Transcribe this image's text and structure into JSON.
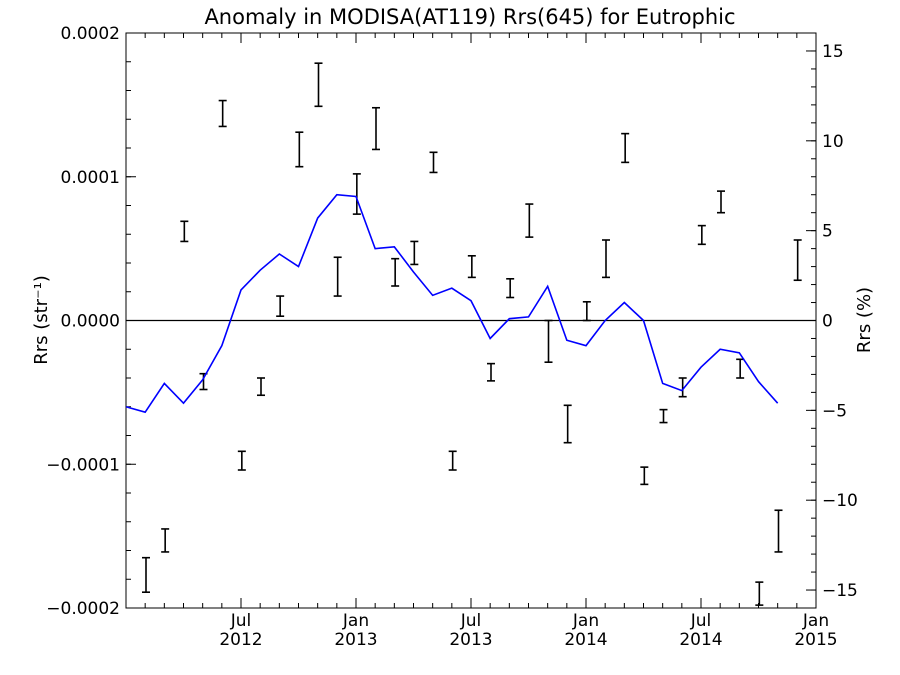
{
  "chart_data": {
    "type": "line",
    "title": "Anomaly in MODISA(AT119) Rrs(645) for Eutrophic",
    "ylabel_left": "Rrs (str⁻¹)",
    "ylabel_right": "Rrs (%)",
    "x_unit": "month",
    "x_start": "2012-01",
    "xlim": [
      "2012-01",
      "2015-01"
    ],
    "ylim_left": [
      -0.0002,
      0.0002
    ],
    "ylim_right": [
      -16,
      16
    ],
    "x_ticks": [
      {
        "month": "2012-07",
        "line1": "Jul",
        "line2": "2012"
      },
      {
        "month": "2013-01",
        "line1": "Jan",
        "line2": "2013"
      },
      {
        "month": "2013-07",
        "line1": "Jul",
        "line2": "2013"
      },
      {
        "month": "2014-01",
        "line1": "Jan",
        "line2": "2014"
      },
      {
        "month": "2014-07",
        "line1": "Jul",
        "line2": "2014"
      },
      {
        "month": "2015-01",
        "line1": "Jan",
        "line2": "2015"
      }
    ],
    "y_ticks_left": [
      {
        "value": 0.0002,
        "label": "0.0002"
      },
      {
        "value": 0.0001,
        "label": "0.0001"
      },
      {
        "value": 0.0,
        "label": "0.0000"
      },
      {
        "value": -0.0001,
        "label": "−0.0001"
      },
      {
        "value": -0.0002,
        "label": "−0.0002"
      }
    ],
    "y_ticks_right": [
      {
        "value": 15,
        "label": "15"
      },
      {
        "value": 10,
        "label": "10"
      },
      {
        "value": 5,
        "label": "5"
      },
      {
        "value": 0,
        "label": "0"
      },
      {
        "value": -5,
        "label": "−5"
      },
      {
        "value": -10,
        "label": "−10"
      },
      {
        "value": -15,
        "label": "−15"
      }
    ],
    "zero_line": true,
    "grid": false,
    "series": [
      {
        "axis": "left",
        "style": "errorbar",
        "color": "#000000",
        "points": [
          {
            "x": "2012-01",
            "low": -0.000189,
            "high": -0.000165
          },
          {
            "x": "2012-02",
            "low": -0.000161,
            "high": -0.000145
          },
          {
            "x": "2012-03",
            "low": 5.5e-05,
            "high": 6.9e-05
          },
          {
            "x": "2012-04",
            "low": -4.8e-05,
            "high": -3.7e-05
          },
          {
            "x": "2012-05",
            "low": 0.000135,
            "high": 0.000153
          },
          {
            "x": "2012-06",
            "low": -0.000104,
            "high": -9.1e-05
          },
          {
            "x": "2012-07",
            "low": -5.2e-05,
            "high": -4e-05
          },
          {
            "x": "2012-08",
            "low": 3e-06,
            "high": 1.7e-05
          },
          {
            "x": "2012-09",
            "low": 0.000107,
            "high": 0.000131
          },
          {
            "x": "2012-10",
            "low": 0.000149,
            "high": 0.000179
          },
          {
            "x": "2012-11",
            "low": 1.7e-05,
            "high": 4.4e-05
          },
          {
            "x": "2012-12",
            "low": 7.4e-05,
            "high": 0.000102
          },
          {
            "x": "2013-01",
            "low": 0.000119,
            "high": 0.000148
          },
          {
            "x": "2013-02",
            "low": 2.4e-05,
            "high": 4.3e-05
          },
          {
            "x": "2013-03",
            "low": 3.9e-05,
            "high": 5.5e-05
          },
          {
            "x": "2013-04",
            "low": 0.000103,
            "high": 0.000117
          },
          {
            "x": "2013-05",
            "low": -0.000104,
            "high": -9.1e-05
          },
          {
            "x": "2013-06",
            "low": 3e-05,
            "high": 4.5e-05
          },
          {
            "x": "2013-07",
            "low": -4.2e-05,
            "high": -3e-05
          },
          {
            "x": "2013-08",
            "low": 1.6e-05,
            "high": 2.9e-05
          },
          {
            "x": "2013-09",
            "low": 5.8e-05,
            "high": 8.1e-05
          },
          {
            "x": "2013-10",
            "low": -2.9e-05,
            "high": 0.0
          },
          {
            "x": "2013-11",
            "low": -8.5e-05,
            "high": -5.9e-05
          },
          {
            "x": "2013-12",
            "low": 0.0,
            "high": 1.3e-05
          },
          {
            "x": "2014-01",
            "low": 3e-05,
            "high": 5.6e-05
          },
          {
            "x": "2014-02",
            "low": 0.00011,
            "high": 0.00013
          },
          {
            "x": "2014-03",
            "low": -0.000114,
            "high": -0.000102
          },
          {
            "x": "2014-04",
            "low": -7.1e-05,
            "high": -6.2e-05
          },
          {
            "x": "2014-05",
            "low": -5.3e-05,
            "high": -4e-05
          },
          {
            "x": "2014-06",
            "low": 5.3e-05,
            "high": 6.6e-05
          },
          {
            "x": "2014-07",
            "low": 7.5e-05,
            "high": 9e-05
          },
          {
            "x": "2014-08",
            "low": -4e-05,
            "high": -2.7e-05
          },
          {
            "x": "2014-09",
            "low": -0.000198,
            "high": -0.000182
          },
          {
            "x": "2014-10",
            "low": -0.000161,
            "high": -0.000132
          },
          {
            "x": "2014-11",
            "low": 2.8e-05,
            "high": 5.6e-05
          }
        ]
      },
      {
        "axis": "right",
        "style": "line",
        "color": "#0000ff",
        "points": [
          {
            "x": "2012-01",
            "y": -4.8
          },
          {
            "x": "2012-02",
            "y": -5.1
          },
          {
            "x": "2012-03",
            "y": -3.5
          },
          {
            "x": "2012-04",
            "y": -4.6
          },
          {
            "x": "2012-05",
            "y": -3.3
          },
          {
            "x": "2012-06",
            "y": -1.4
          },
          {
            "x": "2012-07",
            "y": 1.7
          },
          {
            "x": "2012-08",
            "y": 2.8
          },
          {
            "x": "2012-09",
            "y": 3.7
          },
          {
            "x": "2012-10",
            "y": 3.0
          },
          {
            "x": "2012-11",
            "y": 5.7
          },
          {
            "x": "2012-12",
            "y": 7.0
          },
          {
            "x": "2013-01",
            "y": 6.9
          },
          {
            "x": "2013-02",
            "y": 4.0
          },
          {
            "x": "2013-03",
            "y": 4.1
          },
          {
            "x": "2013-04",
            "y": 2.7
          },
          {
            "x": "2013-05",
            "y": 1.4
          },
          {
            "x": "2013-06",
            "y": 1.8
          },
          {
            "x": "2013-07",
            "y": 1.1
          },
          {
            "x": "2013-08",
            "y": -1.0
          },
          {
            "x": "2013-09",
            "y": 0.1
          },
          {
            "x": "2013-10",
            "y": 0.2
          },
          {
            "x": "2013-11",
            "y": 1.9
          },
          {
            "x": "2013-12",
            "y": -1.1
          },
          {
            "x": "2014-01",
            "y": -1.4
          },
          {
            "x": "2014-02",
            "y": 0.0
          },
          {
            "x": "2014-03",
            "y": 1.0
          },
          {
            "x": "2014-04",
            "y": 0.0
          },
          {
            "x": "2014-05",
            "y": -3.5
          },
          {
            "x": "2014-06",
            "y": -3.9
          },
          {
            "x": "2014-07",
            "y": -2.6
          },
          {
            "x": "2014-08",
            "y": -1.6
          },
          {
            "x": "2014-09",
            "y": -1.8
          },
          {
            "x": "2014-10",
            "y": -3.4
          },
          {
            "x": "2014-11",
            "y": -4.6
          }
        ]
      }
    ]
  }
}
